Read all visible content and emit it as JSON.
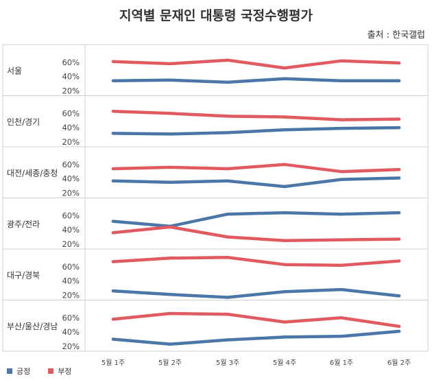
{
  "header": {
    "title": "지역별 문재인 대통령 국정수행평가",
    "source": "출처 : 한국갤럽"
  },
  "colors": {
    "positive": "#4a76a8",
    "negative": "#e05a5f"
  },
  "chart_data": {
    "type": "line",
    "title": "지역별 문재인 대통령 국정수행평가",
    "categories": [
      "5월 1주",
      "5월 2주",
      "5월 3주",
      "5월 4주",
      "6월 1주",
      "6월 2주"
    ],
    "ytick_labels": [
      "60%",
      "40%",
      "20%"
    ],
    "ylim": [
      15,
      75
    ],
    "legend": {
      "placement": "bottom-left",
      "labels": [
        "긍정",
        "부정"
      ]
    },
    "grid": false,
    "panels": [
      {
        "region": "서울",
        "series": [
          {
            "name": "긍정",
            "values": [
              34,
              35,
              32,
              37,
              34,
              34
            ]
          },
          {
            "name": "부정",
            "values": [
              61,
              58,
              63,
              52,
              62,
              59
            ]
          }
        ]
      },
      {
        "region": "인천/경기",
        "series": [
          {
            "name": "긍정",
            "values": [
              32,
              31,
              33,
              37,
              39,
              40
            ]
          },
          {
            "name": "부정",
            "values": [
              63,
              60,
              56,
              55,
              51,
              52
            ]
          }
        ]
      },
      {
        "region": "대전/세종/충청",
        "series": [
          {
            "name": "긍정",
            "values": [
              37,
              35,
              37,
              29,
              39,
              41
            ]
          },
          {
            "name": "부정",
            "values": [
              54,
              56,
              54,
              60,
              50,
              53
            ]
          }
        ]
      },
      {
        "region": "광주/전라",
        "series": [
          {
            "name": "긍정",
            "values": [
              52,
              45,
              62,
              64,
              62,
              64
            ]
          },
          {
            "name": "부정",
            "values": [
              36,
              44,
              30,
              25,
              26,
              27
            ]
          }
        ]
      },
      {
        "region": "대구/경북",
        "series": [
          {
            "name": "긍정",
            "values": [
              26,
              21,
              17,
              25,
              28,
              19
            ]
          },
          {
            "name": "부정",
            "values": [
              67,
              72,
              73,
              63,
              62,
              68
            ]
          }
        ]
      },
      {
        "region": "부산/울산/경남",
        "series": [
          {
            "name": "긍정",
            "values": [
              30,
              23,
              29,
              33,
              34,
              41
            ]
          },
          {
            "name": "부정",
            "values": [
              58,
              66,
              65,
              54,
              60,
              48
            ]
          }
        ]
      }
    ]
  }
}
